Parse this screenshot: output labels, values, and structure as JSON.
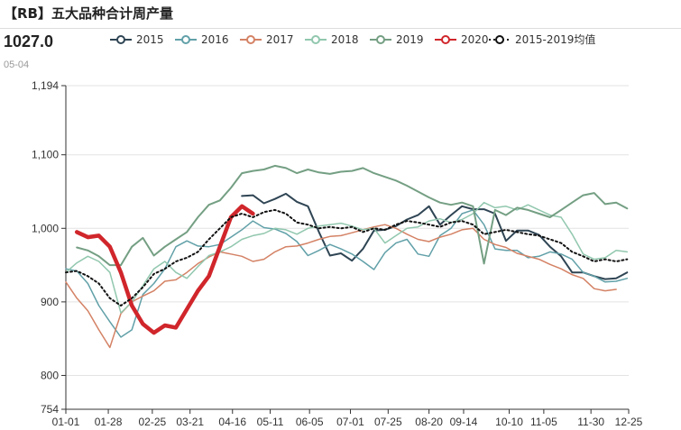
{
  "header": {
    "title": "【RB】五大品种合计周产量",
    "last_value": "1027.0",
    "last_date": "05-04"
  },
  "colors": {
    "2015": "#2f4554",
    "2016": "#61a0a8",
    "2017": "#d48265",
    "2018": "#91c7ae",
    "2019": "#749f83",
    "2020": "#d0262b",
    "avg": "#111111",
    "grid": "#e3e3e3",
    "axis": "#333333"
  },
  "chart_data": {
    "type": "line",
    "title": "【RB】五大品种合计周产量",
    "xlabel": "",
    "ylabel": "",
    "ylim": [
      754,
      1194
    ],
    "xlim": [
      0,
      358
    ],
    "yticks": [
      754,
      800,
      900,
      1000,
      1100,
      1194
    ],
    "ytick_labels": [
      "754",
      "800",
      "900",
      "1,000",
      "1,100",
      "1,194"
    ],
    "xticks": [
      0,
      27,
      55,
      79,
      106,
      130,
      155,
      181,
      205,
      231,
      253,
      282,
      304,
      334,
      358
    ],
    "xtick_labels": [
      "01-01",
      "01-28",
      "02-25",
      "03-21",
      "04-16",
      "05-11",
      "06-05",
      "07-01",
      "07-25",
      "08-20",
      "09-14",
      "10-10",
      "11-05",
      "11-30",
      "12-25"
    ],
    "legend": [
      "2015",
      "2016",
      "2017",
      "2018",
      "2019",
      "2020",
      "2015-2019均值"
    ],
    "legend_position": "top",
    "grid": "horizontal",
    "series": [
      {
        "name": "2015",
        "key": "2015",
        "width": 2,
        "x": [
          112,
          119,
          126,
          133,
          140,
          147,
          154,
          161,
          168,
          175,
          182,
          189,
          196,
          203,
          210,
          217,
          224,
          231,
          238,
          245,
          252,
          259,
          266,
          273,
          280,
          287,
          294,
          301,
          308,
          315,
          322,
          329,
          336,
          343,
          350,
          357
        ],
        "y": [
          1044,
          1045,
          1034,
          1040,
          1047,
          1036,
          1030,
          995,
          963,
          966,
          956,
          972,
          997,
          998,
          1003,
          1012,
          1018,
          1030,
          1005,
          1018,
          1030,
          1026,
          1026,
          1020,
          983,
          997,
          997,
          991,
          975,
          962,
          940,
          940,
          935,
          931,
          932,
          940
        ]
      },
      {
        "name": "2016",
        "key": "2016",
        "width": 1.5,
        "x": [
          0,
          7,
          14,
          21,
          28,
          35,
          42,
          49,
          56,
          63,
          70,
          77,
          84,
          91,
          98,
          105,
          112,
          119,
          126,
          133,
          140,
          147,
          154,
          161,
          168,
          175,
          182,
          189,
          196,
          203,
          210,
          217,
          224,
          231,
          238,
          245,
          252,
          259,
          266,
          273,
          280,
          287,
          294,
          301,
          308,
          315,
          322,
          329,
          336,
          343,
          350,
          357
        ],
        "y": [
          945,
          942,
          925,
          895,
          873,
          852,
          862,
          910,
          925,
          945,
          975,
          983,
          976,
          975,
          978,
          988,
          998,
          1010,
          1001,
          999,
          993,
          982,
          963,
          970,
          978,
          972,
          965,
          955,
          944,
          967,
          980,
          985,
          965,
          962,
          990,
          1000,
          1020,
          1025,
          1005,
          972,
          970,
          970,
          960,
          962,
          968,
          965,
          958,
          940,
          935,
          927,
          928,
          932
        ]
      },
      {
        "name": "2017",
        "key": "2017",
        "width": 1.5,
        "x": [
          0,
          7,
          14,
          21,
          28,
          35,
          42,
          49,
          56,
          63,
          70,
          77,
          84,
          91,
          98,
          105,
          112,
          119,
          126,
          133,
          140,
          147,
          154,
          161,
          168,
          175,
          182,
          189,
          196,
          203,
          210,
          217,
          224,
          231,
          238,
          245,
          252,
          259,
          266,
          273,
          280,
          287,
          294,
          301,
          308,
          315,
          322,
          329,
          336,
          343,
          350
        ],
        "y": [
          927,
          905,
          888,
          862,
          838,
          884,
          900,
          908,
          915,
          928,
          930,
          940,
          952,
          961,
          968,
          965,
          962,
          955,
          958,
          968,
          975,
          976,
          980,
          985,
          989,
          990,
          994,
          998,
          1002,
          1005,
          1000,
          992,
          985,
          982,
          988,
          992,
          998,
          1000,
          985,
          978,
          974,
          966,
          962,
          958,
          951,
          945,
          937,
          932,
          918,
          915,
          917
        ]
      },
      {
        "name": "2018",
        "key": "2018",
        "width": 1.5,
        "x": [
          0,
          7,
          14,
          21,
          28,
          35,
          42,
          49,
          56,
          63,
          70,
          77,
          84,
          91,
          98,
          105,
          112,
          119,
          126,
          133,
          140,
          147,
          154,
          161,
          168,
          175,
          182,
          189,
          196,
          203,
          210,
          217,
          224,
          231,
          238,
          245,
          252,
          259,
          266,
          273,
          280,
          287,
          294,
          301,
          308,
          315,
          322,
          329,
          336,
          343,
          350,
          357
        ],
        "y": [
          940,
          953,
          962,
          955,
          940,
          885,
          900,
          922,
          945,
          955,
          940,
          932,
          948,
          963,
          968,
          975,
          985,
          990,
          993,
          1000,
          998,
          992,
          1000,
          1003,
          1005,
          1007,
          1003,
          998,
          1000,
          980,
          990,
          1000,
          1002,
          1010,
          1013,
          1008,
          1012,
          1020,
          1035,
          1028,
          1030,
          1025,
          1032,
          1025,
          1018,
          1015,
          992,
          965,
          958,
          960,
          970,
          968
        ]
      },
      {
        "name": "2019",
        "key": "2019",
        "width": 2,
        "x": [
          7,
          14,
          21,
          28,
          35,
          42,
          49,
          56,
          63,
          70,
          77,
          84,
          91,
          98,
          105,
          112,
          119,
          126,
          133,
          140,
          147,
          154,
          161,
          168,
          175,
          182,
          189,
          196,
          203,
          210,
          217,
          224,
          231,
          238,
          245,
          252,
          259,
          266,
          273,
          280,
          287,
          294,
          301,
          308,
          315,
          322,
          329,
          336,
          343,
          350,
          357
        ],
        "y": [
          974,
          970,
          962,
          950,
          950,
          975,
          987,
          963,
          975,
          985,
          995,
          1015,
          1032,
          1038,
          1055,
          1075,
          1078,
          1080,
          1085,
          1082,
          1075,
          1080,
          1076,
          1074,
          1077,
          1078,
          1082,
          1075,
          1070,
          1065,
          1058,
          1050,
          1042,
          1035,
          1032,
          1035,
          1030,
          952,
          1025,
          1018,
          1028,
          1025,
          1020,
          1015,
          1025,
          1035,
          1045,
          1048,
          1033,
          1035,
          1027
        ]
      },
      {
        "name": "2020",
        "key": "2020",
        "width": 4.5,
        "x": [
          7,
          14,
          21,
          28,
          35,
          42,
          49,
          56,
          63,
          70,
          77,
          84,
          91,
          98,
          105,
          112,
          119
        ],
        "y": [
          995,
          988,
          990,
          975,
          940,
          895,
          870,
          858,
          868,
          865,
          890,
          915,
          935,
          975,
          1015,
          1030,
          1020
        ]
      },
      {
        "name": "2015-2019均值",
        "key": "avg",
        "width": 2,
        "dash": "2,3",
        "x": [
          0,
          7,
          14,
          21,
          28,
          35,
          42,
          49,
          56,
          63,
          70,
          77,
          84,
          91,
          98,
          105,
          112,
          119,
          126,
          133,
          140,
          147,
          154,
          161,
          168,
          175,
          182,
          189,
          196,
          203,
          210,
          217,
          224,
          231,
          238,
          245,
          252,
          259,
          266,
          273,
          280,
          287,
          294,
          301,
          308,
          315,
          322,
          329,
          336,
          343,
          350,
          357
        ],
        "y": [
          940,
          942,
          935,
          925,
          905,
          895,
          905,
          920,
          938,
          945,
          955,
          960,
          968,
          985,
          1000,
          1015,
          1020,
          1015,
          1022,
          1025,
          1020,
          1008,
          1005,
          1000,
          1002,
          1000,
          1002,
          995,
          1000,
          998,
          1005,
          1010,
          1008,
          1005,
          1002,
          1008,
          1010,
          1005,
          992,
          995,
          998,
          995,
          992,
          990,
          985,
          980,
          968,
          962,
          955,
          958,
          955,
          958
        ]
      }
    ]
  }
}
